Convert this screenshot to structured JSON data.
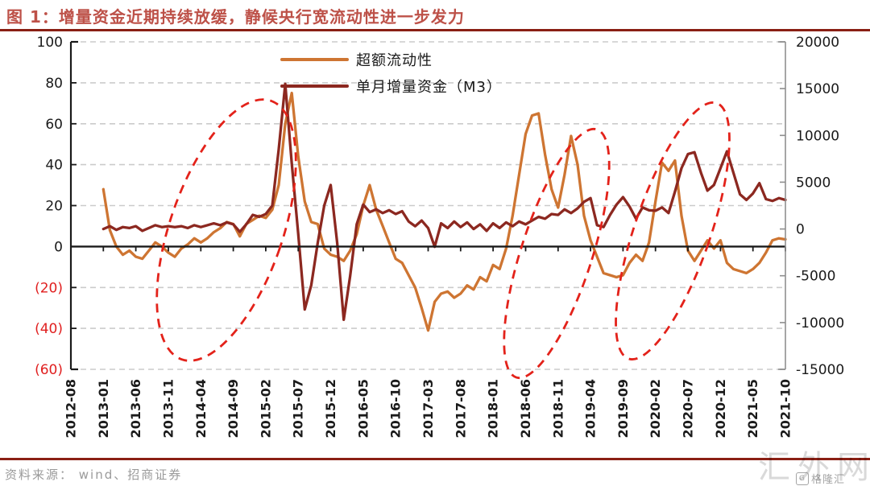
{
  "title": {
    "text": "图 1：增量资金近期持续放缓，静候央行宽流动性进一步发力"
  },
  "source": {
    "text": "资料来源： wind、招商证券"
  },
  "watermark": {
    "text": "汇外网",
    "logo_text": "格隆汇",
    "logo_badge": "G"
  },
  "colors": {
    "title": "#bd5148",
    "rule": "#8a1f14",
    "grid": "#cbcbcb",
    "axis_black": "#1a1a1a",
    "axis_gray": "#8f8f8f",
    "negative_label": "#e01f1f",
    "annotation": "#e3221a"
  },
  "chart_data": {
    "type": "line",
    "title": "增量资金近期持续放缓，静候央行宽流动性进一步发力",
    "x_range": [
      "2012-08",
      "2021-10"
    ],
    "x_tick_labels": [
      "2012-08",
      "2013-01",
      "2013-06",
      "2013-11",
      "2014-04",
      "2014-09",
      "2015-02",
      "2015-07",
      "2015-12",
      "2016-05",
      "2016-10",
      "2017-03",
      "2017-08",
      "2018-01",
      "2018-06",
      "2018-11",
      "2019-04",
      "2019-09",
      "2020-02",
      "2020-07",
      "2020-12",
      "2021-05",
      "2021-10"
    ],
    "left_axis": {
      "min": -60,
      "max": 100,
      "values": [
        100,
        80,
        60,
        40,
        20,
        0,
        -20,
        -40,
        -60
      ],
      "ticks": [
        "100",
        "80",
        "60",
        "40",
        "20",
        "0",
        "(20)",
        "(40)",
        "(60)"
      ]
    },
    "right_axis": {
      "min": -15000,
      "max": 20000,
      "values": [
        20000,
        15000,
        10000,
        5000,
        0,
        -5000,
        -10000,
        -15000
      ],
      "ticks": [
        "20000",
        "15000",
        "10000",
        "5000",
        "0",
        "-5000",
        "-10000",
        "-15000"
      ]
    },
    "grid": "dashed-horizontal",
    "legend_position": "top-center",
    "series": [
      {
        "name": "超额流动性",
        "axis": "left",
        "color": "#ce7532",
        "start": "2013-01",
        "values": [
          28,
          8,
          0,
          -4,
          -2,
          -5,
          -6,
          -2,
          2,
          0,
          -3,
          -5,
          -1,
          1,
          4,
          2,
          4,
          7,
          9,
          12,
          11,
          5,
          11,
          13,
          15,
          14,
          18,
          30,
          60,
          75,
          44,
          22,
          12,
          11,
          -1,
          -4,
          -5,
          -7,
          -2,
          6,
          20,
          30,
          18,
          10,
          2,
          -6,
          -8,
          -14,
          -20,
          -30,
          -41,
          -27,
          -23,
          -22,
          -25,
          -23,
          -19,
          -21,
          -15,
          -17,
          -9,
          -11,
          -1,
          15,
          35,
          55,
          64,
          65,
          45,
          28,
          19,
          35,
          54,
          40,
          15,
          3,
          -5,
          -13,
          -14,
          -15,
          -14,
          -8,
          -4,
          -7,
          2,
          22,
          41,
          37,
          42,
          15,
          -2,
          -7,
          -2,
          3,
          -1,
          3,
          -8,
          -11,
          -12,
          -13,
          -11,
          -8,
          -3,
          3,
          4,
          3.5
        ]
      },
      {
        "name": "单月增量资金（M3）",
        "axis": "right",
        "color": "#8c2820",
        "start": "2013-01",
        "values": [
          0,
          300,
          -100,
          200,
          100,
          300,
          -200,
          100,
          400,
          200,
          300,
          200,
          300,
          100,
          400,
          200,
          400,
          600,
          400,
          700,
          500,
          -300,
          500,
          1500,
          1300,
          1600,
          2500,
          8500,
          15500,
          7000,
          -500,
          -8600,
          -6000,
          -1500,
          2500,
          4700,
          -1500,
          -9700,
          -5000,
          500,
          2600,
          1800,
          2100,
          1700,
          2000,
          1600,
          1900,
          800,
          300,
          900,
          100,
          -1900,
          600,
          100,
          800,
          200,
          700,
          0,
          500,
          -200,
          600,
          100,
          700,
          300,
          800,
          500,
          900,
          1300,
          1100,
          1600,
          1500,
          2100,
          1700,
          2200,
          2900,
          3300,
          400,
          200,
          1500,
          2600,
          3400,
          2400,
          1100,
          2300,
          2000,
          1950,
          2300,
          1700,
          4000,
          6500,
          8000,
          8200,
          6000,
          4100,
          4700,
          6500,
          8300,
          6000,
          3700,
          3100,
          3800,
          4900,
          3200,
          3000,
          3300,
          3100
        ]
      }
    ],
    "annotations": {
      "color": "#e3221a",
      "style": "dashed",
      "ellipses": [
        {
          "cx": 0.2176,
          "cy": 0.575,
          "rx": 0.0789,
          "ry": 0.4177,
          "angle": 19
        },
        {
          "cx": 0.6798,
          "cy": 0.6462,
          "rx": 0.0496,
          "ry": 0.398,
          "angle": 18
        },
        {
          "cx": 0.8422,
          "cy": 0.5774,
          "rx": 0.053,
          "ry": 0.4128,
          "angle": 19
        }
      ]
    }
  }
}
